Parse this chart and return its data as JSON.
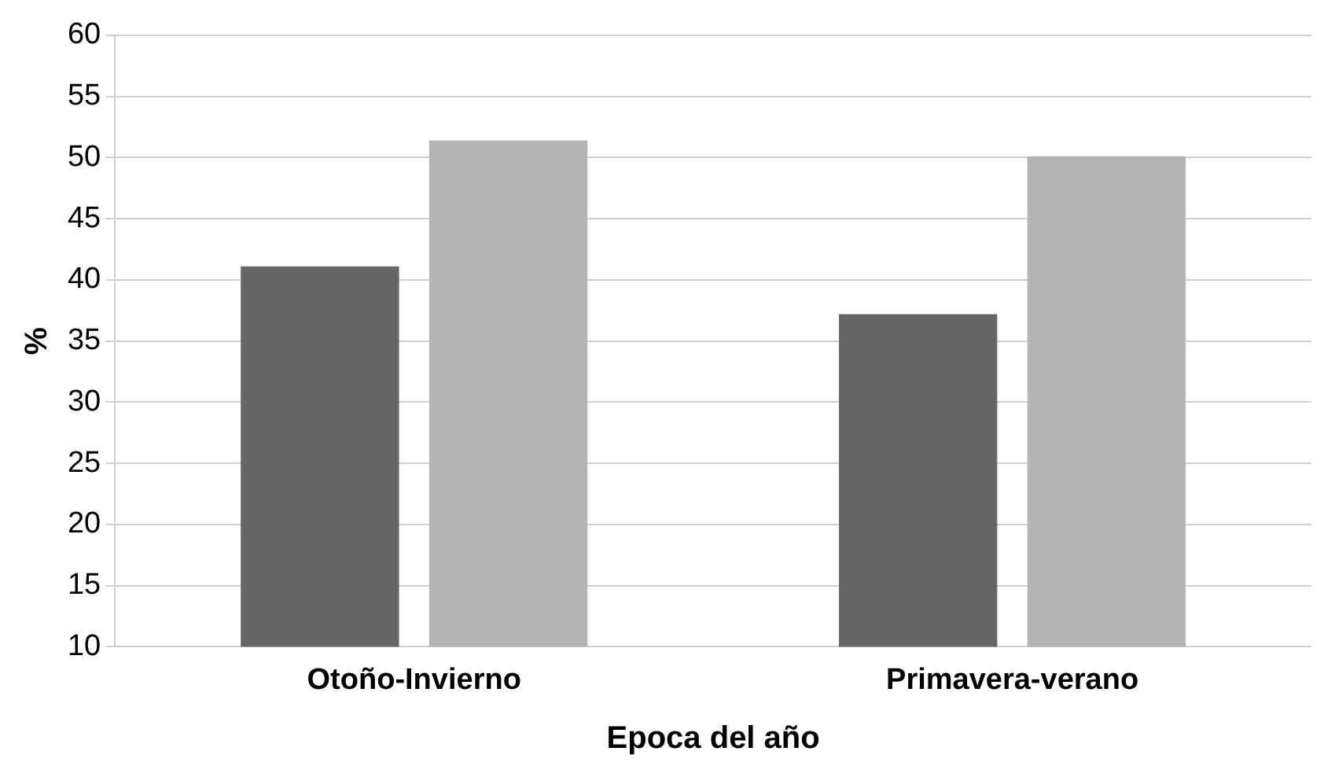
{
  "chart_data": {
    "type": "bar",
    "xlabel": "Epoca del año",
    "ylabel": "%",
    "categories": [
      "Otoño-Invierno",
      "Primavera-verano"
    ],
    "series": [
      {
        "color": "#666666",
        "values": [
          41.1,
          37.2
        ]
      },
      {
        "color": "#b4b4b4",
        "values": [
          51.4,
          50.1
        ]
      }
    ],
    "ylim": [
      10,
      60
    ],
    "yticks": [
      10,
      15,
      20,
      25,
      30,
      35,
      40,
      45,
      50,
      55,
      60
    ],
    "grid": "y",
    "legend": false
  }
}
